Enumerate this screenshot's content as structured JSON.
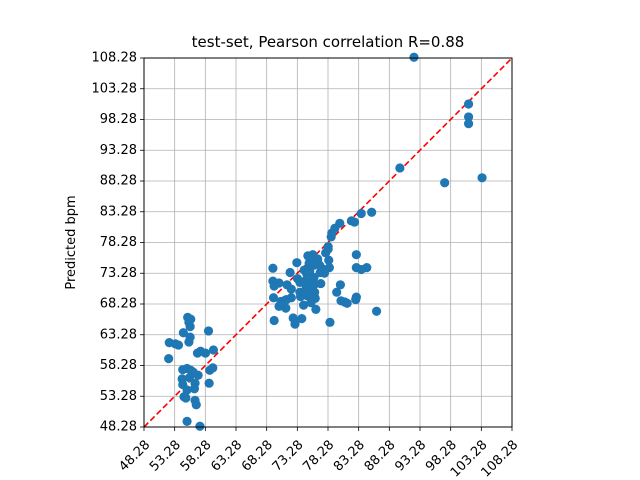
{
  "chart_data": {
    "type": "scatter",
    "title": "test-set, Pearson correlation R=0.88",
    "xlabel": "",
    "ylabel": "Predicted bpm",
    "xlim": [
      48.28,
      108.28
    ],
    "ylim": [
      48.28,
      108.28
    ],
    "xticks": [
      "48.28",
      "53.28",
      "58.28",
      "63.28",
      "68.28",
      "73.28",
      "78.28",
      "83.28",
      "88.28",
      "93.28",
      "98.28",
      "103.28",
      "108.28"
    ],
    "yticks": [
      "48.28",
      "53.28",
      "58.28",
      "63.28",
      "68.28",
      "73.28",
      "78.28",
      "83.28",
      "88.28",
      "93.28",
      "98.28",
      "103.28",
      "108.28"
    ],
    "grid": true,
    "point_color": "#1f77b4",
    "reference_line": {
      "style": "dashed",
      "color": "#ff0000",
      "from": [
        48.28,
        48.28
      ],
      "to": [
        108.28,
        108.28
      ]
    },
    "series": [
      {
        "points": [
          [
            52.3,
            59.4
          ],
          [
            52.4,
            62.0
          ],
          [
            53.4,
            61.8
          ],
          [
            53.9,
            61.6
          ],
          [
            54.7,
            63.6
          ],
          [
            54.6,
            57.6
          ],
          [
            54.5,
            56.1
          ],
          [
            54.6,
            55.2
          ],
          [
            54.8,
            53.2
          ],
          [
            55.3,
            57.8
          ],
          [
            55.3,
            54.3
          ],
          [
            55.1,
            53.0
          ],
          [
            55.4,
            66.1
          ],
          [
            55.9,
            65.8
          ],
          [
            55.8,
            64.6
          ],
          [
            55.8,
            62.9
          ],
          [
            55.6,
            62.1
          ],
          [
            55.6,
            65.3
          ],
          [
            55.9,
            57.5
          ],
          [
            55.7,
            56.3
          ],
          [
            55.3,
            49.2
          ],
          [
            56.3,
            57.2
          ],
          [
            56.5,
            54.5
          ],
          [
            56.6,
            55.4
          ],
          [
            56.8,
            51.9
          ],
          [
            56.6,
            52.6
          ],
          [
            57.0,
            60.3
          ],
          [
            57.1,
            56.7
          ],
          [
            57.4,
            48.4
          ],
          [
            57.5,
            60.6
          ],
          [
            58.3,
            60.3
          ],
          [
            58.8,
            63.9
          ],
          [
            58.9,
            55.4
          ],
          [
            59.0,
            57.5
          ],
          [
            59.5,
            57.9
          ],
          [
            59.6,
            60.8
          ],
          [
            69.3,
            74.1
          ],
          [
            69.3,
            72.0
          ],
          [
            69.5,
            65.6
          ],
          [
            69.4,
            69.3
          ],
          [
            69.5,
            71.2
          ],
          [
            70.3,
            71.7
          ],
          [
            70.3,
            67.9
          ],
          [
            70.6,
            68.7
          ],
          [
            71.3,
            68.9
          ],
          [
            71.4,
            67.6
          ],
          [
            71.5,
            69.0
          ],
          [
            71.6,
            71.4
          ],
          [
            72.1,
            73.4
          ],
          [
            72.3,
            70.7
          ],
          [
            72.3,
            69.3
          ],
          [
            72.6,
            66.0
          ],
          [
            72.9,
            65.0
          ],
          [
            73.2,
            75.0
          ],
          [
            73.3,
            72.4
          ],
          [
            73.7,
            70.2
          ],
          [
            73.7,
            71.8
          ],
          [
            73.8,
            69.5
          ],
          [
            74.0,
            65.9
          ],
          [
            74.3,
            68.1
          ],
          [
            74.4,
            73.8
          ],
          [
            74.5,
            72.0
          ],
          [
            74.5,
            70.3
          ],
          [
            74.7,
            71.2
          ],
          [
            74.8,
            73.2
          ],
          [
            74.9,
            69.6
          ],
          [
            75.0,
            76.1
          ],
          [
            75.2,
            74.9
          ],
          [
            75.3,
            73.6
          ],
          [
            75.5,
            71.9
          ],
          [
            75.4,
            70.8
          ],
          [
            75.5,
            68.5
          ],
          [
            75.8,
            76.3
          ],
          [
            75.9,
            75.2
          ],
          [
            76.0,
            74.6
          ],
          [
            76.0,
            72.6
          ],
          [
            76.1,
            71.5
          ],
          [
            76.1,
            70.2
          ],
          [
            76.2,
            69.2
          ],
          [
            76.3,
            67.4
          ],
          [
            76.6,
            75.6
          ],
          [
            76.9,
            74.6
          ],
          [
            77.0,
            73.4
          ],
          [
            77.1,
            71.6
          ],
          [
            77.4,
            74.0
          ],
          [
            77.7,
            73.3
          ],
          [
            77.9,
            76.6
          ],
          [
            78.3,
            77.6
          ],
          [
            78.3,
            77.2
          ],
          [
            78.4,
            75.4
          ],
          [
            78.5,
            74.2
          ],
          [
            78.6,
            65.3
          ],
          [
            78.8,
            79.2
          ],
          [
            78.9,
            79.8
          ],
          [
            79.4,
            80.6
          ],
          [
            79.7,
            70.2
          ],
          [
            80.2,
            81.4
          ],
          [
            80.3,
            71.4
          ],
          [
            80.4,
            68.8
          ],
          [
            81.0,
            68.6
          ],
          [
            81.4,
            68.4
          ],
          [
            82.1,
            81.8
          ],
          [
            82.6,
            81.6
          ],
          [
            82.9,
            76.3
          ],
          [
            82.9,
            74.2
          ],
          [
            82.9,
            69.4
          ],
          [
            82.8,
            69.0
          ],
          [
            83.7,
            83.0
          ],
          [
            83.7,
            73.9
          ],
          [
            84.6,
            74.2
          ],
          [
            85.4,
            83.2
          ],
          [
            86.2,
            67.1
          ],
          [
            90.0,
            90.4
          ],
          [
            92.3,
            108.4
          ],
          [
            97.3,
            88.0
          ],
          [
            101.2,
            100.8
          ],
          [
            101.2,
            98.7
          ],
          [
            101.2,
            97.6
          ],
          [
            103.4,
            88.8
          ]
        ]
      }
    ]
  }
}
